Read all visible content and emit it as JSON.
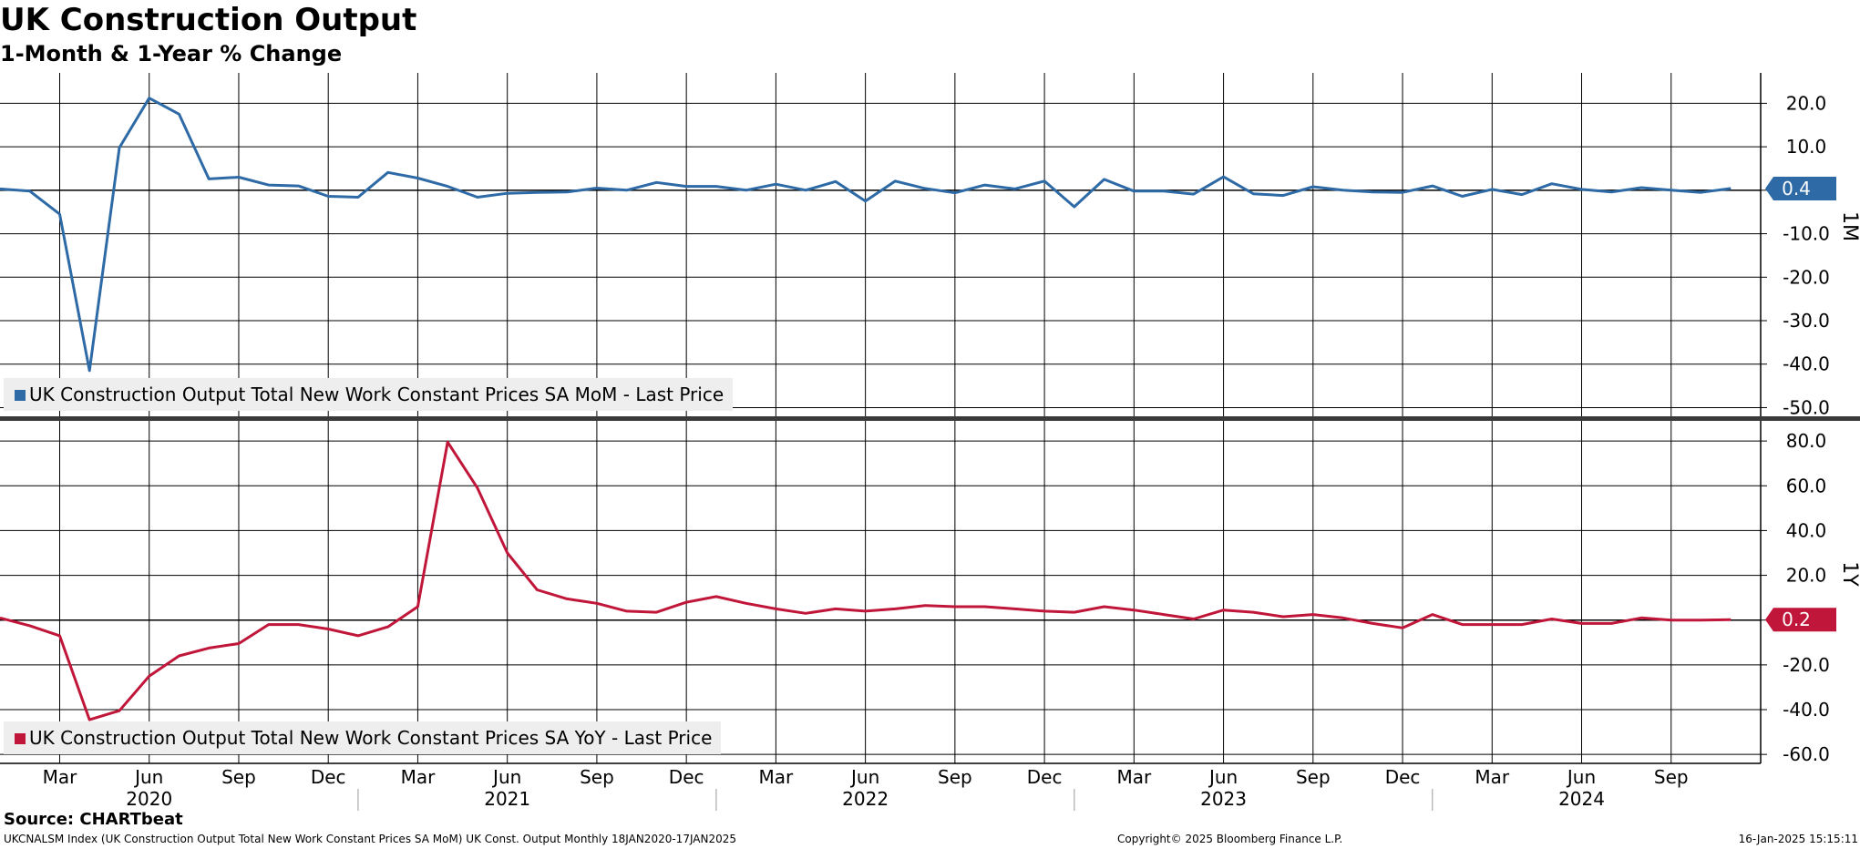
{
  "title": "UK Construction Output",
  "subtitle": "1-Month & 1-Year % Change",
  "source": "Source: CHARTbeat",
  "footer": {
    "left": "UKCNALSM Index (UK Construction Output Total New Work Constant Prices SA MoM) UK Const. Output  Monthly 18JAN2020-17JAN2025",
    "center": "Copyright© 2025 Bloomberg Finance L.P.",
    "right": "16-Jan-2025 15:15:11"
  },
  "chart_data": [
    {
      "type": "line",
      "panel_label": "1M",
      "ylim": [
        -52,
        27
      ],
      "yticks": [
        20,
        10,
        0,
        -10,
        -20,
        -30,
        -40,
        -50
      ],
      "ytick_labels": [
        "20.0",
        "10.0",
        "",
        "-10.0",
        "-20.0",
        "-30.0",
        "-40.0",
        "-50.0"
      ],
      "grid": true,
      "legend": "bottom-left",
      "series": [
        {
          "name": "UK Construction Output Total New Work Constant Prices SA MoM - Last Price",
          "color": "#2e6aa6",
          "last_value": "0.4",
          "x": [
            "2020-01",
            "2020-02",
            "2020-03",
            "2020-04",
            "2020-05",
            "2020-06",
            "2020-07",
            "2020-08",
            "2020-09",
            "2020-10",
            "2020-11",
            "2020-12",
            "2021-01",
            "2021-02",
            "2021-03",
            "2021-04",
            "2021-05",
            "2021-06",
            "2021-07",
            "2021-08",
            "2021-09",
            "2021-10",
            "2021-11",
            "2021-12",
            "2022-01",
            "2022-02",
            "2022-03",
            "2022-04",
            "2022-05",
            "2022-06",
            "2022-07",
            "2022-08",
            "2022-09",
            "2022-10",
            "2022-11",
            "2022-12",
            "2023-01",
            "2023-02",
            "2023-03",
            "2023-04",
            "2023-05",
            "2023-06",
            "2023-07",
            "2023-08",
            "2023-09",
            "2023-10",
            "2023-11",
            "2023-12",
            "2024-01",
            "2024-02",
            "2024-03",
            "2024-04",
            "2024-05",
            "2024-06",
            "2024-07",
            "2024-08",
            "2024-09",
            "2024-10",
            "2024-11"
          ],
          "values": [
            0.3,
            -0.2,
            -5.5,
            -41.5,
            9.8,
            21.2,
            17.5,
            2.6,
            3.0,
            1.2,
            1.0,
            -1.4,
            -1.6,
            4.1,
            2.8,
            0.9,
            -1.6,
            -0.7,
            -0.5,
            -0.4,
            0.5,
            0.0,
            1.8,
            0.9,
            0.9,
            0.0,
            1.4,
            0.0,
            2.0,
            -2.5,
            2.1,
            0.4,
            -0.6,
            1.2,
            0.3,
            2.1,
            -3.8,
            2.5,
            -0.2,
            -0.2,
            -0.9,
            3.1,
            -0.8,
            -1.2,
            0.8,
            0.0,
            -0.4,
            -0.5,
            1.0,
            -1.4,
            0.2,
            -1.0,
            1.5,
            0.2,
            -0.4,
            0.6,
            0.0,
            -0.5,
            0.4
          ]
        }
      ]
    },
    {
      "type": "line",
      "panel_label": "1Y",
      "ylim": [
        -64,
        89
      ],
      "yticks": [
        80,
        60,
        40,
        20,
        0,
        -20,
        -40,
        -60
      ],
      "ytick_labels": [
        "80.0",
        "60.0",
        "40.0",
        "20.0",
        "",
        "-20.0",
        "-40.0",
        "-60.0"
      ],
      "grid": true,
      "legend": "bottom-left",
      "series": [
        {
          "name": "UK Construction Output Total New Work Constant Prices SA YoY - Last Price",
          "color": "#c0163a",
          "last_value": "0.2",
          "x": [
            "2020-01",
            "2020-02",
            "2020-03",
            "2020-04",
            "2020-05",
            "2020-06",
            "2020-07",
            "2020-08",
            "2020-09",
            "2020-10",
            "2020-11",
            "2020-12",
            "2021-01",
            "2021-02",
            "2021-03",
            "2021-04",
            "2021-05",
            "2021-06",
            "2021-07",
            "2021-08",
            "2021-09",
            "2021-10",
            "2021-11",
            "2021-12",
            "2022-01",
            "2022-02",
            "2022-03",
            "2022-04",
            "2022-05",
            "2022-06",
            "2022-07",
            "2022-08",
            "2022-09",
            "2022-10",
            "2022-11",
            "2022-12",
            "2023-01",
            "2023-02",
            "2023-03",
            "2023-04",
            "2023-05",
            "2023-06",
            "2023-07",
            "2023-08",
            "2023-09",
            "2023-10",
            "2023-11",
            "2023-12",
            "2024-01",
            "2024-02",
            "2024-03",
            "2024-04",
            "2024-05",
            "2024-06",
            "2024-07",
            "2024-08",
            "2024-09",
            "2024-10",
            "2024-11"
          ],
          "values": [
            1.0,
            -2.5,
            -7.0,
            -44.5,
            -40.5,
            -25.0,
            -16.0,
            -12.5,
            -10.5,
            -2.0,
            -2.0,
            -4.0,
            -7.0,
            -3.0,
            6.0,
            79.5,
            59.0,
            30.0,
            13.5,
            9.5,
            7.5,
            4.0,
            3.5,
            8.0,
            10.5,
            7.5,
            5.0,
            3.0,
            5.0,
            4.0,
            5.0,
            6.5,
            6.0,
            6.0,
            5.0,
            4.0,
            3.5,
            6.0,
            4.5,
            2.5,
            0.5,
            4.5,
            3.5,
            1.5,
            2.5,
            1.0,
            -1.5,
            -3.5,
            2.5,
            -2.0,
            -2.0,
            -2.0,
            0.5,
            -1.5,
            -1.5,
            1.0,
            0.0,
            0.0,
            0.2
          ]
        }
      ]
    }
  ],
  "x_axis": {
    "month_labels": [
      "Mar",
      "Jun",
      "Sep",
      "Dec",
      "Mar",
      "Jun",
      "Sep",
      "Dec",
      "Mar",
      "Jun",
      "Sep",
      "Dec",
      "Mar",
      "Jun",
      "Sep",
      "Dec",
      "Mar",
      "Jun",
      "Sep"
    ],
    "month_dates": [
      "2020-03",
      "2020-06",
      "2020-09",
      "2020-12",
      "2021-03",
      "2021-06",
      "2021-09",
      "2021-12",
      "2022-03",
      "2022-06",
      "2022-09",
      "2022-12",
      "2023-03",
      "2023-06",
      "2023-09",
      "2023-12",
      "2024-03",
      "2024-06",
      "2024-09"
    ],
    "year_labels": [
      "2020",
      "2021",
      "2022",
      "2023",
      "2024"
    ],
    "range": [
      "2020-01",
      "2024-12"
    ]
  }
}
